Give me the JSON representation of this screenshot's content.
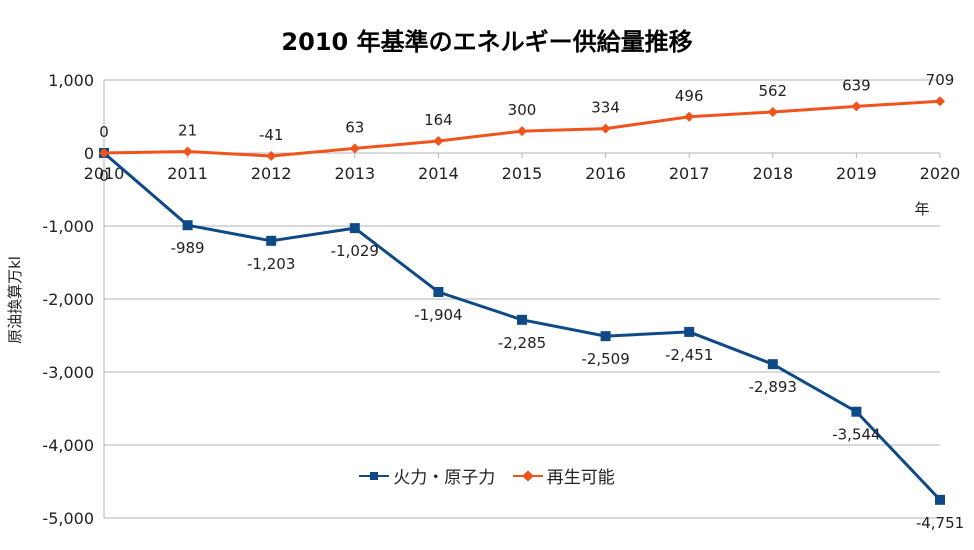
{
  "chart_data": {
    "type": "line",
    "title": "2010 年基準のエネルギー供給量推移",
    "xlabel": "年",
    "ylabel": "原油換算万kl",
    "categories": [
      "2010",
      "2011",
      "2012",
      "2013",
      "2014",
      "2015",
      "2016",
      "2017",
      "2018",
      "2019",
      "2020"
    ],
    "ylim": [
      -5000,
      1000
    ],
    "yticks": [
      1000,
      0,
      -1000,
      -2000,
      -3000,
      -4000,
      -5000
    ],
    "ytick_labels": [
      "1,000",
      "0",
      "-1,000",
      "-2,000",
      "-3,000",
      "-4,000",
      "-5,000"
    ],
    "grid": true,
    "legend_position": "bottom",
    "series": [
      {
        "name": "火力・原子力",
        "color": "#0f4a87",
        "marker": "square",
        "values": [
          0,
          -989,
          -1203,
          -1029,
          -1904,
          -2285,
          -2509,
          -2451,
          -2893,
          -3544,
          -4751
        ],
        "labels": [
          "0",
          "-989",
          "-1,203",
          "-1,029",
          "-1,904",
          "-2,285",
          "-2,509",
          "-2,451",
          "-2,893",
          "-3,544",
          "-4,751"
        ]
      },
      {
        "name": "再生可能",
        "color": "#f0541c",
        "marker": "diamond",
        "values": [
          0,
          21,
          -41,
          63,
          164,
          300,
          334,
          496,
          562,
          639,
          709
        ],
        "labels": [
          "0",
          "21",
          "-41",
          "63",
          "164",
          "300",
          "334",
          "496",
          "562",
          "639",
          "709"
        ]
      }
    ]
  }
}
